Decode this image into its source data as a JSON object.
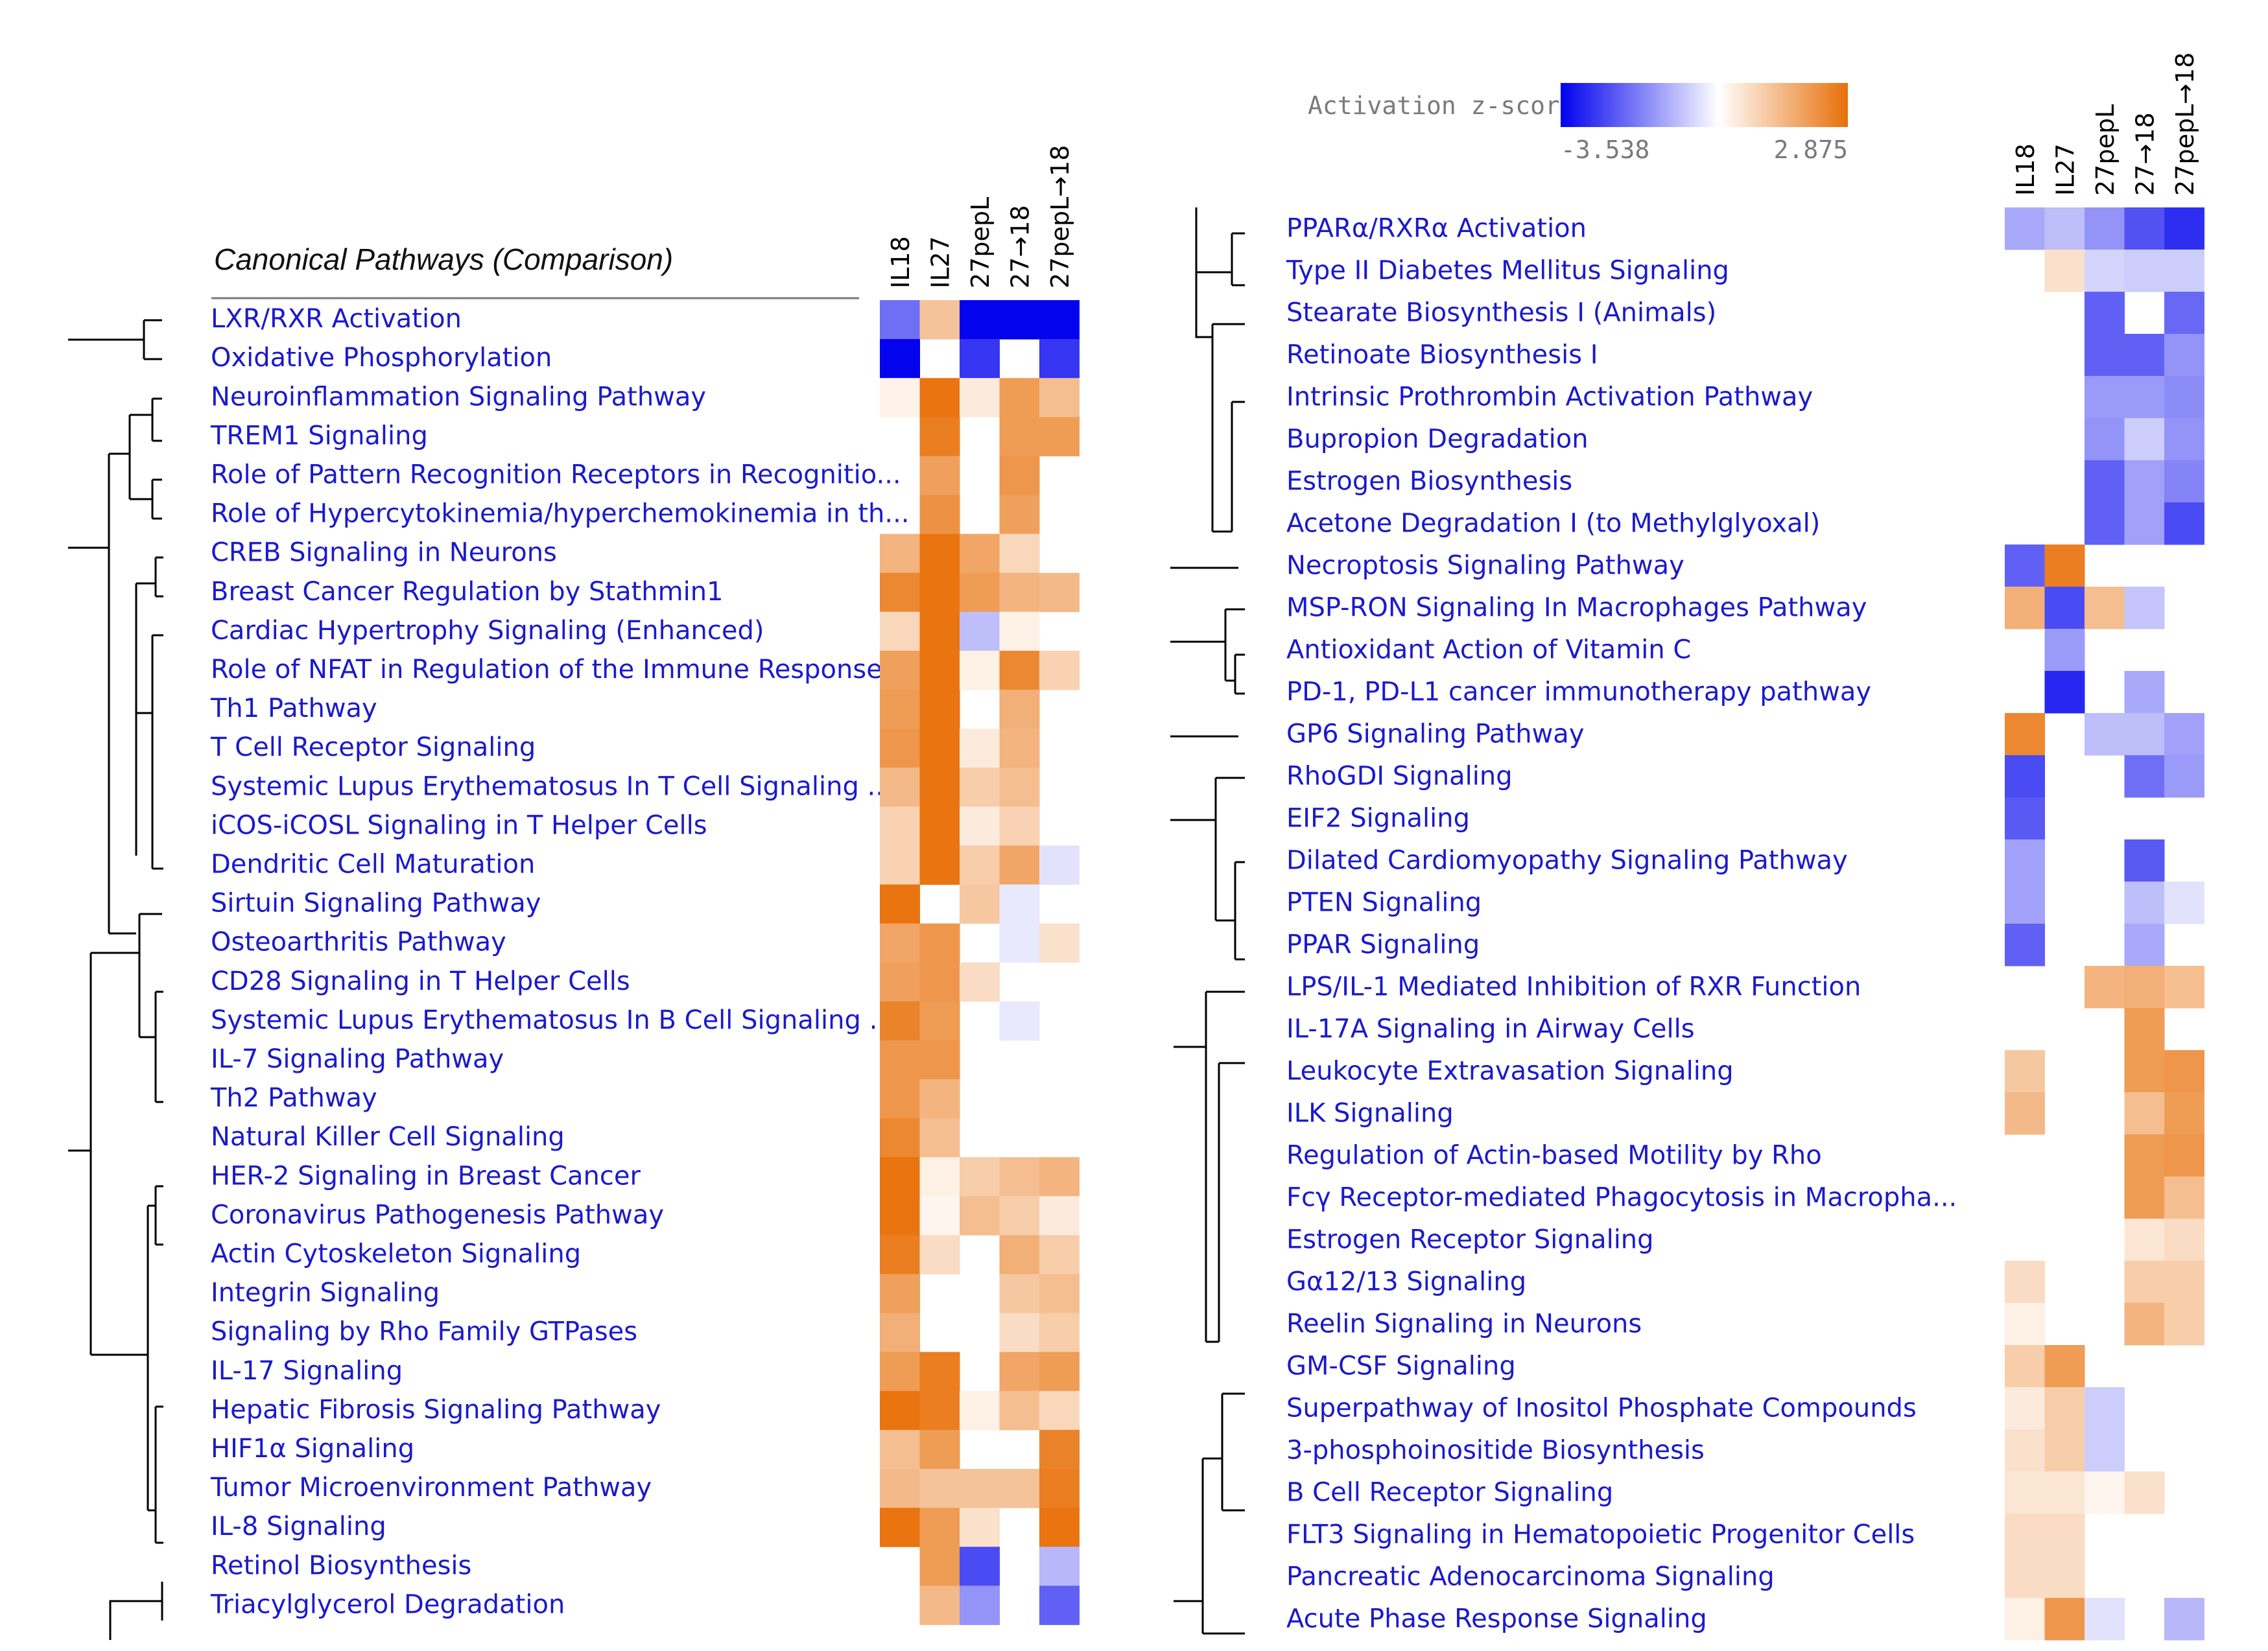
{
  "chart_data": {
    "type": "heatmap",
    "title": "Canonical Pathways (Comparison)",
    "columns": [
      "IL18",
      "IL27",
      "27pepL",
      "27→18",
      "27pepL→18"
    ],
    "legend": {
      "title": "Activation z-score",
      "min": -3.538,
      "max": 2.875,
      "min_label": "-3.538",
      "max_label": "2.875",
      "colors": {
        "low": "#0000ee",
        "mid": "#ffffff",
        "high": "#e8700a"
      }
    },
    "panels": [
      {
        "rows": [
          {
            "name": "LXR/RXR Activation",
            "values": [
              -2.0,
              1.2,
              -3.5,
              -3.5,
              -3.5
            ]
          },
          {
            "name": "Oxidative Phosphorylation",
            "values": [
              -3.5,
              null,
              -2.8,
              null,
              -2.8
            ]
          },
          {
            "name": "Neuroinflammation Signaling Pathway",
            "values": [
              0.25,
              2.8,
              0.4,
              2.0,
              1.3
            ]
          },
          {
            "name": "TREM1 Signaling",
            "values": [
              null,
              2.6,
              null,
              2.0,
              2.0
            ]
          },
          {
            "name": "Role of Pattern Recognition Receptors in Recognitio...",
            "values": [
              null,
              1.9,
              null,
              2.1,
              null
            ]
          },
          {
            "name": "Role of Hypercytokinemia/hyperchemokinemia in th...",
            "values": [
              null,
              2.2,
              null,
              1.9,
              null
            ]
          },
          {
            "name": "CREB Signaling in Neurons",
            "values": [
              1.5,
              2.8,
              1.8,
              0.8,
              null
            ]
          },
          {
            "name": "Breast Cancer Regulation by Stathmin1",
            "values": [
              2.4,
              2.8,
              2.0,
              1.5,
              1.4
            ]
          },
          {
            "name": "Cardiac Hypertrophy Signaling (Enhanced)",
            "values": [
              0.8,
              2.8,
              -0.9,
              0.3,
              null
            ]
          },
          {
            "name": "Role of NFAT in Regulation of the Immune Response",
            "values": [
              1.9,
              2.8,
              0.3,
              2.4,
              0.9
            ]
          },
          {
            "name": "Th1 Pathway",
            "values": [
              2.0,
              2.8,
              null,
              1.6,
              null
            ]
          },
          {
            "name": "T Cell Receptor Signaling",
            "values": [
              2.1,
              2.8,
              0.4,
              1.5,
              null
            ]
          },
          {
            "name": "Systemic Lupus Erythematosus In T Cell Signaling ...",
            "values": [
              1.4,
              2.8,
              1.0,
              1.3,
              null
            ]
          },
          {
            "name": "iCOS-iCOSL Signaling in T Helper Cells",
            "values": [
              0.9,
              2.8,
              0.4,
              0.9,
              null
            ]
          },
          {
            "name": "Dendritic Cell Maturation",
            "values": [
              0.9,
              2.8,
              1.0,
              1.8,
              -0.4
            ]
          },
          {
            "name": "Sirtuin Signaling Pathway",
            "values": [
              2.8,
              null,
              1.1,
              -0.3,
              null
            ]
          },
          {
            "name": "Osteoarthritis Pathway",
            "values": [
              1.8,
              2.1,
              null,
              -0.3,
              0.6
            ]
          },
          {
            "name": "CD28 Signaling in T Helper Cells",
            "values": [
              1.9,
              2.1,
              0.7,
              null,
              null
            ]
          },
          {
            "name": "Systemic Lupus Erythematosus In B Cell Signaling ...",
            "values": [
              2.5,
              2.0,
              null,
              -0.3,
              null
            ]
          },
          {
            "name": "IL-7 Signaling Pathway",
            "values": [
              2.1,
              2.1,
              null,
              null,
              null
            ]
          },
          {
            "name": "Th2 Pathway",
            "values": [
              2.1,
              1.5,
              null,
              null,
              null
            ]
          },
          {
            "name": "Natural Killer Cell Signaling",
            "values": [
              2.4,
              1.3,
              null,
              null,
              null
            ]
          },
          {
            "name": "HER-2 Signaling in Breast Cancer",
            "values": [
              2.8,
              0.3,
              1.0,
              1.3,
              1.5
            ]
          },
          {
            "name": "Coronavirus Pathogenesis Pathway",
            "values": [
              2.8,
              0.2,
              1.3,
              1.0,
              0.4
            ]
          },
          {
            "name": "Actin Cytoskeleton Signaling",
            "values": [
              2.6,
              0.7,
              null,
              1.6,
              1.0
            ]
          },
          {
            "name": "Integrin Signaling",
            "values": [
              1.9,
              null,
              null,
              1.1,
              1.3
            ]
          },
          {
            "name": "Signaling by Rho Family GTPases",
            "values": [
              1.6,
              null,
              null,
              0.7,
              1.0
            ]
          },
          {
            "name": "IL-17 Signaling",
            "values": [
              2.0,
              2.6,
              null,
              1.8,
              2.0
            ]
          },
          {
            "name": "Hepatic Fibrosis Signaling Pathway",
            "values": [
              2.8,
              2.6,
              0.3,
              1.3,
              0.8
            ]
          },
          {
            "name": "HIF1α Signaling",
            "values": [
              1.3,
              2.0,
              null,
              null,
              2.5
            ]
          },
          {
            "name": "Tumor Microenvironment Pathway",
            "values": [
              1.4,
              1.2,
              1.2,
              1.2,
              2.6
            ]
          },
          {
            "name": "IL-8 Signaling",
            "values": [
              2.8,
              2.0,
              0.6,
              null,
              2.8
            ]
          },
          {
            "name": "Retinol Biosynthesis",
            "values": [
              null,
              2.0,
              -2.5,
              null,
              -1.0
            ]
          },
          {
            "name": "Triacylglycerol Degradation",
            "values": [
              null,
              1.4,
              -1.5,
              null,
              -2.2
            ]
          }
        ]
      },
      {
        "rows": [
          {
            "name": "PPARα/RXRα Activation",
            "values": [
              -1.2,
              -0.9,
              -1.5,
              -2.4,
              -2.9
            ]
          },
          {
            "name": "Type II Diabetes Mellitus Signaling",
            "values": [
              null,
              0.6,
              -0.6,
              -0.7,
              -0.7
            ]
          },
          {
            "name": "Stearate Biosynthesis I (Animals)",
            "values": [
              null,
              null,
              -2.2,
              null,
              -2.1
            ]
          },
          {
            "name": "Retinoate Biosynthesis I",
            "values": [
              null,
              null,
              -2.2,
              -2.2,
              -1.5
            ]
          },
          {
            "name": "Intrinsic Prothrombin Activation Pathway",
            "values": [
              null,
              null,
              -1.4,
              -1.4,
              -1.6
            ]
          },
          {
            "name": "Bupropion Degradation",
            "values": [
              null,
              null,
              -1.5,
              -0.7,
              -1.5
            ]
          },
          {
            "name": "Estrogen Biosynthesis",
            "values": [
              null,
              null,
              -2.2,
              -1.3,
              -1.7
            ]
          },
          {
            "name": "Acetone Degradation I (to Methylglyoxal)",
            "values": [
              null,
              null,
              -2.2,
              -1.3,
              -2.5
            ]
          },
          {
            "name": "Necroptosis Signaling Pathway",
            "values": [
              -2.2,
              2.6,
              null,
              null,
              null
            ]
          },
          {
            "name": "MSP-RON Signaling In Macrophages Pathway",
            "values": [
              1.6,
              -2.5,
              1.3,
              -0.8,
              null
            ]
          },
          {
            "name": "Antioxidant Action of Vitamin C",
            "values": [
              null,
              -1.4,
              null,
              null,
              null
            ]
          },
          {
            "name": "PD-1, PD-L1 cancer immunotherapy pathway",
            "values": [
              null,
              -3.0,
              null,
              -1.2,
              null
            ]
          },
          {
            "name": "GP6 Signaling Pathway",
            "values": [
              2.4,
              null,
              -0.9,
              -0.9,
              -1.3
            ]
          },
          {
            "name": "RhoGDI Signaling",
            "values": [
              -2.5,
              null,
              null,
              -2.0,
              -1.4
            ]
          },
          {
            "name": "EIF2 Signaling",
            "values": [
              -2.3,
              null,
              null,
              null,
              null
            ]
          },
          {
            "name": "Dilated Cardiomyopathy Signaling Pathway",
            "values": [
              -1.3,
              null,
              null,
              -2.3,
              null
            ]
          },
          {
            "name": "PTEN Signaling",
            "values": [
              -1.3,
              null,
              null,
              -0.9,
              -0.4
            ]
          },
          {
            "name": "PPAR Signaling",
            "values": [
              -2.2,
              null,
              null,
              -1.2,
              null
            ]
          },
          {
            "name": "LPS/IL-1 Mediated Inhibition of RXR Function",
            "values": [
              null,
              null,
              1.5,
              1.6,
              1.3
            ]
          },
          {
            "name": "IL-17A Signaling in Airway Cells",
            "values": [
              null,
              null,
              null,
              2.0,
              null
            ]
          },
          {
            "name": "Leukocyte Extravasation Signaling",
            "values": [
              1.1,
              null,
              null,
              2.0,
              2.1
            ]
          },
          {
            "name": "ILK Signaling",
            "values": [
              1.4,
              null,
              null,
              1.3,
              2.0
            ]
          },
          {
            "name": "Regulation of Actin-based Motility by Rho",
            "values": [
              null,
              null,
              null,
              2.0,
              2.1
            ]
          },
          {
            "name": "Fcγ Receptor-mediated Phagocytosis in Macropha...",
            "values": [
              null,
              null,
              null,
              2.0,
              1.3
            ]
          },
          {
            "name": "Estrogen Receptor Signaling",
            "values": [
              null,
              null,
              null,
              0.5,
              0.7
            ]
          },
          {
            "name": "Gα12/13 Signaling",
            "values": [
              0.7,
              null,
              null,
              1.0,
              1.0
            ]
          },
          {
            "name": "Reelin Signaling in Neurons",
            "values": [
              0.3,
              null,
              null,
              1.5,
              1.0
            ]
          },
          {
            "name": "GM-CSF Signaling",
            "values": [
              1.0,
              2.0,
              null,
              null,
              null
            ]
          },
          {
            "name": "Superpathway of Inositol Phosphate Compounds",
            "values": [
              0.4,
              1.0,
              -0.7,
              null,
              null
            ]
          },
          {
            "name": "3-phosphoinositide Biosynthesis",
            "values": [
              0.6,
              1.0,
              -0.7,
              null,
              null
            ]
          },
          {
            "name": "B Cell Receptor Signaling",
            "values": [
              0.5,
              0.5,
              0.2,
              0.6,
              null
            ]
          },
          {
            "name": "FLT3 Signaling in Hematopoietic Progenitor Cells",
            "values": [
              0.7,
              0.7,
              null,
              null,
              null
            ]
          },
          {
            "name": "Pancreatic Adenocarcinoma Signaling",
            "values": [
              0.7,
              0.7,
              null,
              null,
              null
            ]
          },
          {
            "name": "Acute Phase Response Signaling",
            "values": [
              0.3,
              2.1,
              -0.4,
              null,
              -1.0
            ]
          }
        ]
      }
    ]
  }
}
